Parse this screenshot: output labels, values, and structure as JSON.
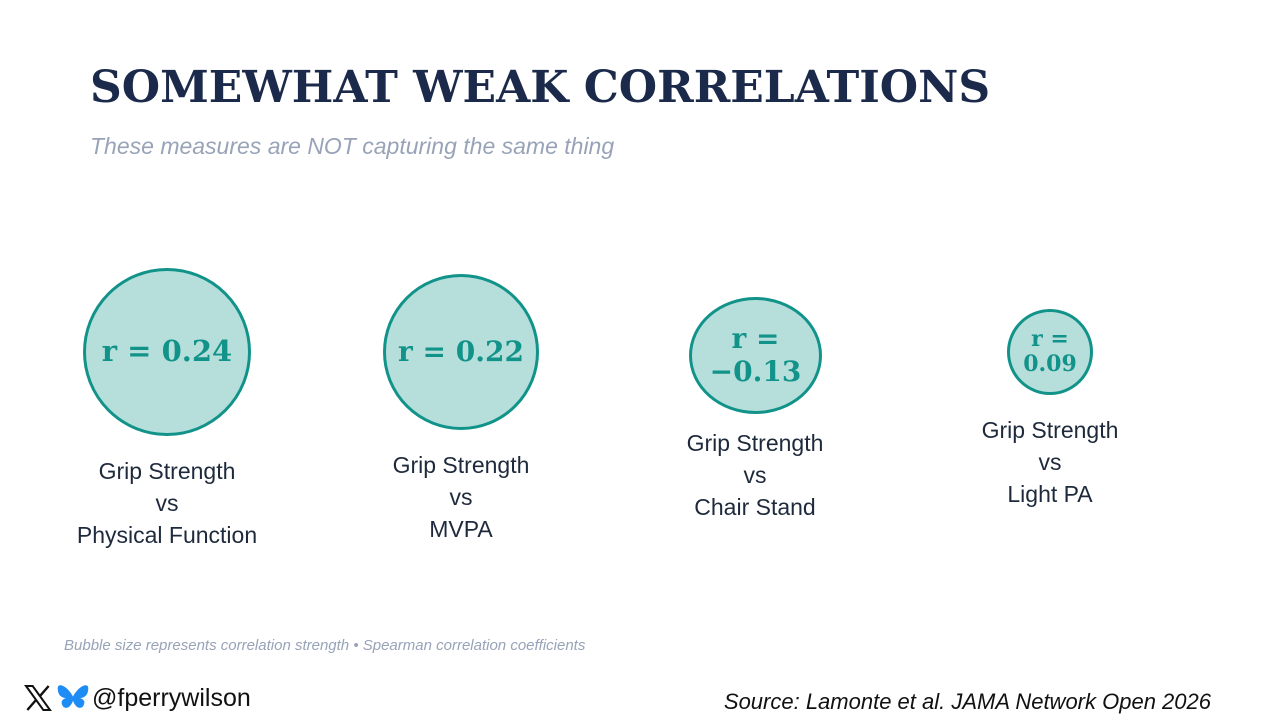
{
  "title": "SOMEWHAT WEAK CORRELATIONS",
  "subtitle": "These measures are NOT capturing the same thing",
  "colors": {
    "bubble_fill": "#b6dfdc",
    "bubble_stroke": "#12938a",
    "title": "#1b2a4a"
  },
  "chart_data": {
    "type": "bubble",
    "title": "SOMEWHAT WEAK CORRELATIONS",
    "items": [
      {
        "r_label_1": "r = 0.24",
        "r_label_2": "",
        "value": 0.24,
        "line1": "Grip Strength",
        "line2": "vs",
        "line3": "Physical Function"
      },
      {
        "r_label_1": "r = 0.22",
        "r_label_2": "",
        "value": 0.22,
        "line1": "Grip Strength",
        "line2": "vs",
        "line3": "MVPA"
      },
      {
        "r_label_1": "r =",
        "r_label_2": "−0.13",
        "value": -0.13,
        "line1": "Grip Strength",
        "line2": "vs",
        "line3": "Chair Stand"
      },
      {
        "r_label_1": "r =",
        "r_label_2": "0.09",
        "value": 0.09,
        "line1": "Grip Strength",
        "line2": "vs",
        "line3": "Light PA"
      }
    ]
  },
  "footnote": "Bubble size represents correlation strength  •  Spearman correlation coefficients",
  "social": {
    "handle": "@fperrywilson",
    "icons": [
      "x-icon",
      "bluesky-icon"
    ]
  },
  "source": "Source: Lamonte et al. JAMA Network Open 2026"
}
